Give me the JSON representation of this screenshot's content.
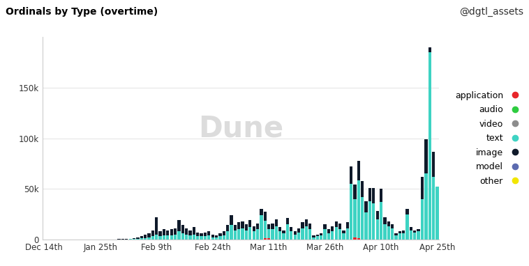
{
  "chart_data": {
    "type": "bar",
    "title": "Ordinals by Type (overtime)",
    "subtitle": "@dgtl_assets",
    "annotations": [
      "Dune"
    ],
    "stacked": true,
    "grid": true,
    "legend": "center left",
    "ylim": [
      0,
      200000
    ],
    "yticks": [
      0,
      {
        "value": 50000,
        "label": "50k"
      },
      {
        "value": 100000,
        "label": "100k"
      },
      {
        "value": 150000,
        "label": "150k"
      }
    ],
    "categories": [
      "Dec 14th",
      null,
      null,
      null,
      null,
      null,
      null,
      null,
      null,
      null,
      null,
      null,
      null,
      null,
      null,
      "Jan 25th",
      null,
      null,
      null,
      null,
      null,
      null,
      null,
      null,
      null,
      null,
      null,
      null,
      null,
      null,
      "Feb 9th",
      null,
      null,
      null,
      null,
      null,
      null,
      null,
      null,
      null,
      null,
      null,
      null,
      null,
      null,
      "Feb 24th",
      null,
      null,
      null,
      null,
      null,
      null,
      null,
      null,
      null,
      null,
      null,
      null,
      null,
      null,
      "Mar 11th",
      null,
      null,
      null,
      null,
      null,
      null,
      null,
      null,
      null,
      null,
      null,
      null,
      null,
      null,
      "Mar 26th",
      null,
      null,
      null,
      null,
      null,
      null,
      null,
      null,
      null,
      null,
      null,
      null,
      null,
      null,
      "Apr 10th",
      null,
      null,
      null,
      null,
      null,
      null,
      null,
      null,
      null,
      null,
      null,
      null,
      null,
      null,
      "Apr 25th"
    ],
    "series": [
      {
        "name": "application",
        "color": "#e8262a",
        "values": [
          0,
          0,
          0,
          0,
          0,
          0,
          0,
          0,
          0,
          0,
          0,
          0,
          0,
          0,
          0,
          0,
          0,
          0,
          0,
          0,
          0,
          0,
          0,
          0,
          0,
          0,
          0,
          0,
          0,
          0,
          0,
          0,
          0,
          0,
          0,
          0,
          0,
          0,
          0,
          0,
          0,
          0,
          0,
          0,
          0,
          0,
          0,
          0,
          0,
          0,
          0,
          0,
          0,
          0,
          0,
          0,
          0,
          0,
          0,
          1500,
          1000,
          0,
          0,
          0,
          0,
          0,
          0,
          0,
          0,
          0,
          0,
          0,
          0,
          0,
          0,
          0,
          0,
          0,
          0,
          0,
          0,
          0,
          0,
          2000,
          1500,
          0,
          0,
          0,
          0,
          0,
          0,
          0,
          0,
          0,
          0,
          0,
          0,
          0,
          0,
          0,
          0,
          0,
          0,
          0,
          0,
          0
        ]
      },
      {
        "name": "audio",
        "color": "#2ecc40",
        "values": [
          0,
          0,
          0,
          0,
          0,
          0,
          0,
          0,
          0,
          0,
          0,
          0,
          0,
          0,
          0,
          0,
          0,
          0,
          0,
          0,
          0,
          0,
          0,
          0,
          0,
          0,
          0,
          0,
          0,
          0,
          0,
          0,
          0,
          0,
          0,
          0,
          0,
          0,
          0,
          0,
          0,
          0,
          0,
          0,
          0,
          0,
          0,
          0,
          0,
          0,
          0,
          0,
          0,
          0,
          0,
          0,
          0,
          0,
          0,
          0,
          0,
          0,
          0,
          0,
          0,
          0,
          0,
          0,
          0,
          0,
          0,
          0,
          0,
          0,
          0,
          0,
          0,
          0,
          0,
          0,
          0,
          0,
          0,
          0,
          0,
          0,
          0,
          0,
          0,
          0,
          0,
          0,
          0,
          0,
          0,
          0,
          0,
          0,
          0,
          0,
          0,
          0,
          0,
          0,
          0,
          0
        ]
      },
      {
        "name": "video",
        "color": "#8c8c8c",
        "values": [
          0,
          0,
          0,
          0,
          0,
          0,
          0,
          0,
          0,
          0,
          0,
          0,
          0,
          0,
          0,
          0,
          0,
          0,
          0,
          0,
          0,
          0,
          0,
          0,
          0,
          0,
          0,
          0,
          0,
          0,
          0,
          0,
          0,
          0,
          0,
          0,
          0,
          0,
          0,
          0,
          0,
          0,
          0,
          0,
          0,
          0,
          0,
          0,
          0,
          0,
          0,
          0,
          0,
          0,
          0,
          0,
          0,
          0,
          0,
          0,
          0,
          0,
          0,
          0,
          0,
          0,
          0,
          0,
          0,
          0,
          0,
          0,
          0,
          0,
          0,
          0,
          0,
          0,
          0,
          0,
          0,
          0,
          0,
          0,
          0,
          0,
          0,
          0,
          0,
          0,
          0,
          0,
          0,
          0,
          0,
          0,
          0,
          0,
          0,
          0,
          0,
          0,
          0,
          0,
          0,
          0
        ]
      },
      {
        "name": "text",
        "color": "#3ed3c3",
        "values": [
          0,
          0,
          0,
          0,
          0,
          0,
          0,
          0,
          0,
          0,
          0,
          0,
          0,
          0,
          0,
          0,
          100,
          100,
          100,
          100,
          200,
          200,
          200,
          300,
          500,
          800,
          1200,
          1500,
          2000,
          3000,
          5000,
          3000,
          4000,
          4000,
          4000,
          5000,
          8000,
          6000,
          5000,
          4000,
          5000,
          3000,
          3000,
          3000,
          4000,
          2000,
          2000,
          3000,
          4000,
          8000,
          14000,
          9000,
          10000,
          11000,
          9000,
          12000,
          8000,
          10000,
          24000,
          17000,
          9000,
          10000,
          13000,
          8000,
          6000,
          15000,
          8000,
          5000,
          7000,
          11000,
          13000,
          10000,
          2000,
          3000,
          4000,
          10000,
          6000,
          8000,
          12000,
          10000,
          6000,
          11000,
          55000,
          38000,
          57000,
          42000,
          27000,
          38000,
          36000,
          20000,
          37000,
          15000,
          13000,
          11000,
          4000,
          6000,
          6000,
          25000,
          9000,
          7000,
          8000,
          40000,
          65000,
          185000,
          62000,
          52000
        ]
      },
      {
        "name": "image",
        "color": "#0f1a2a",
        "values": [
          0,
          0,
          0,
          0,
          0,
          0,
          0,
          0,
          0,
          0,
          0,
          0,
          0,
          0,
          0,
          0,
          0,
          0,
          100,
          100,
          100,
          100,
          200,
          200,
          500,
          1200,
          1800,
          3000,
          4000,
          6000,
          17000,
          5000,
          6000,
          5000,
          6000,
          6000,
          11000,
          8000,
          6000,
          5000,
          7000,
          4000,
          3000,
          4000,
          4000,
          3000,
          2000,
          3000,
          4000,
          6000,
          10000,
          5000,
          7000,
          7000,
          6000,
          7000,
          5000,
          6000,
          6000,
          9000,
          5000,
          6000,
          7000,
          4000,
          3000,
          6000,
          4000,
          3000,
          4000,
          6000,
          7000,
          6000,
          2000,
          2000,
          2000,
          5000,
          4000,
          5000,
          6000,
          6000,
          3000,
          6000,
          17000,
          14000,
          19000,
          16000,
          11000,
          13000,
          15000,
          8000,
          13000,
          7000,
          5000,
          4000,
          2000,
          2000,
          3000,
          5000,
          3000,
          2000,
          2000,
          22000,
          34000,
          5000,
          25000,
          0
        ]
      },
      {
        "name": "model",
        "color": "#5c6bb0",
        "values": [
          0,
          0,
          0,
          0,
          0,
          0,
          0,
          0,
          0,
          0,
          0,
          0,
          0,
          0,
          0,
          0,
          0,
          0,
          0,
          0,
          0,
          0,
          0,
          0,
          0,
          0,
          0,
          0,
          0,
          0,
          0,
          0,
          0,
          0,
          0,
          0,
          0,
          0,
          0,
          0,
          0,
          0,
          0,
          0,
          0,
          0,
          0,
          0,
          0,
          0,
          0,
          0,
          0,
          0,
          0,
          0,
          0,
          0,
          0,
          0,
          0,
          0,
          0,
          0,
          0,
          0,
          0,
          0,
          0,
          0,
          0,
          0,
          0,
          0,
          0,
          0,
          0,
          0,
          0,
          0,
          0,
          0,
          0,
          0,
          0,
          0,
          0,
          0,
          0,
          0,
          0,
          0,
          0,
          0,
          0,
          0,
          0,
          0,
          0,
          0,
          0,
          0,
          0,
          0,
          0,
          0
        ]
      },
      {
        "name": "other",
        "color": "#f2e600",
        "values": [
          0,
          0,
          0,
          0,
          0,
          0,
          0,
          0,
          0,
          0,
          0,
          0,
          0,
          0,
          0,
          0,
          0,
          0,
          0,
          0,
          0,
          0,
          0,
          0,
          0,
          0,
          0,
          0,
          0,
          0,
          0,
          0,
          0,
          0,
          0,
          0,
          0,
          0,
          0,
          0,
          0,
          0,
          0,
          0,
          0,
          0,
          0,
          0,
          0,
          0,
          0,
          0,
          0,
          0,
          0,
          0,
          0,
          0,
          0,
          0,
          0,
          0,
          0,
          0,
          0,
          0,
          0,
          0,
          0,
          0,
          0,
          0,
          0,
          0,
          0,
          0,
          0,
          0,
          0,
          0,
          0,
          0,
          0,
          0,
          0,
          0,
          0,
          0,
          0,
          0,
          0,
          0,
          0,
          0,
          0,
          0,
          0,
          0,
          0,
          0,
          0,
          0,
          0,
          0,
          0,
          0
        ]
      }
    ]
  }
}
